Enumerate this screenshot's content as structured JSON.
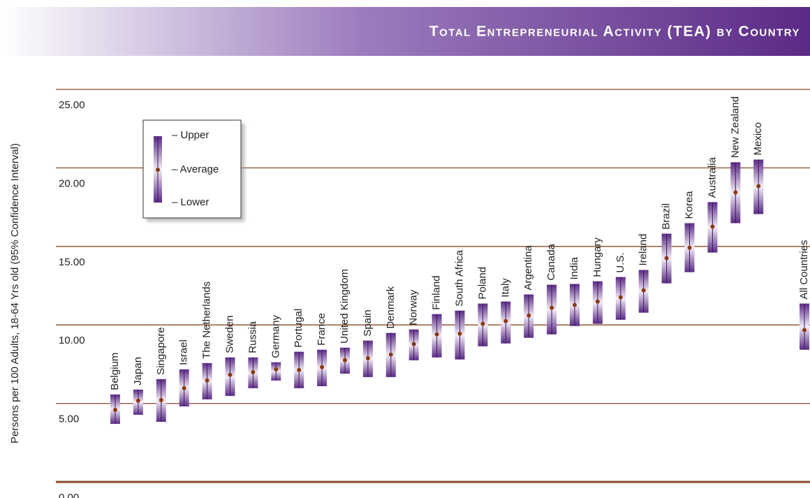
{
  "chart_data": {
    "type": "range",
    "title": "Total Entrepreneurial Activity (TEA) by Country",
    "y_label": "Persons per 100 Adults, 18-64 Yrs old (95% Confidence Interval)",
    "categories": [
      "Belgium",
      "Japan",
      "Singapore",
      "Israel",
      "The Netherlands",
      "Sweden",
      "Russia",
      "Germany",
      "Portugal",
      "France",
      "United Kingdom",
      "Spain",
      "Denmark",
      "Norway",
      "Finland",
      "South Africa",
      "Poland",
      "Italy",
      "Argentina",
      "Canada",
      "India",
      "Hungary",
      "U.S.",
      "Ireland",
      "Brazil",
      "Korea",
      "Australia",
      "New Zealand",
      "Mexico",
      null,
      "All Countries"
    ],
    "upper": [
      5.57,
      5.88,
      6.55,
      7.17,
      7.57,
      7.93,
      7.93,
      7.62,
      8.29,
      8.42,
      8.55,
      9.0,
      9.49,
      9.71,
      10.69,
      10.91,
      11.36,
      11.49,
      11.94,
      12.56,
      12.61,
      12.78,
      13.05,
      13.5,
      15.81,
      16.48,
      17.82,
      20.36,
      20.53,
      null,
      11.36
    ],
    "average": [
      4.59,
      5.17,
      5.21,
      5.97,
      6.46,
      6.82,
      6.99,
      7.17,
      7.13,
      7.31,
      7.75,
      7.88,
      8.11,
      8.78,
      9.4,
      9.44,
      10.07,
      10.24,
      10.6,
      11.09,
      11.27,
      11.49,
      11.76,
      12.2,
      14.25,
      14.92,
      16.26,
      18.44,
      18.84,
      null,
      9.67
    ],
    "lower": [
      3.7,
      4.28,
      3.83,
      4.81,
      5.26,
      5.48,
      5.97,
      6.46,
      5.97,
      6.1,
      6.9,
      6.68,
      6.68,
      7.75,
      7.93,
      7.8,
      8.64,
      8.82,
      9.18,
      9.4,
      9.93,
      10.07,
      10.33,
      10.78,
      12.65,
      13.36,
      14.61,
      16.48,
      17.06,
      null,
      8.42
    ],
    "legend": {
      "upper": "– Upper",
      "average": "– Average",
      "lower": "– Lower"
    },
    "ylim": [
      0,
      25
    ],
    "yticks": [
      {
        "value": 0,
        "label": "0.00"
      },
      {
        "value": 5,
        "label": "5.00"
      },
      {
        "value": 10,
        "label": "10.00"
      },
      {
        "value": 15,
        "label": "15.00"
      },
      {
        "value": 20,
        "label": "20.00"
      },
      {
        "value": 25,
        "label": "25.00"
      }
    ],
    "grid": true,
    "color": "#5b2a86"
  }
}
